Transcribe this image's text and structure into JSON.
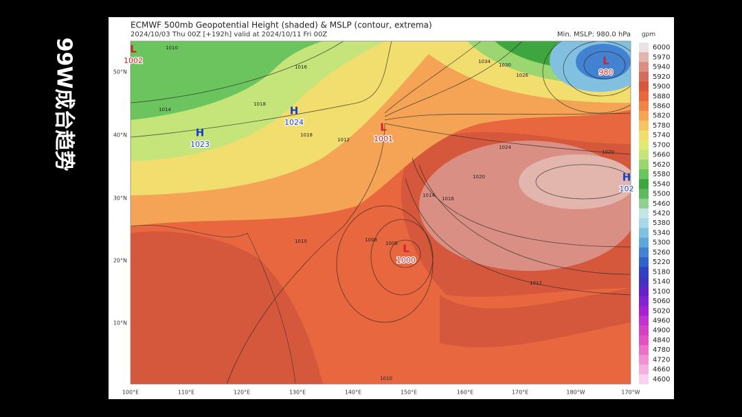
{
  "overlay_title": "99W成台趋势",
  "header": {
    "title": "ECMWF 500mb Geopotential Height (shaded) & MSLP (contour, extrema)",
    "subtitle": "2024/10/03 Thu 00Z [+192h] valid at 2024/10/11 Fri 00Z",
    "min_mslp": "Min. MSLP: 980.0 hPa"
  },
  "colorbar": {
    "unit": "gpm",
    "levels": [
      {
        "value": 6000,
        "color": "#ebe3e3"
      },
      {
        "value": 5970,
        "color": "#e2b5ad"
      },
      {
        "value": 5940,
        "color": "#d98f83"
      },
      {
        "value": 5920,
        "color": "#d46e5c"
      },
      {
        "value": 5900,
        "color": "#d5583c"
      },
      {
        "value": 5880,
        "color": "#e8673f"
      },
      {
        "value": 5860,
        "color": "#f08448"
      },
      {
        "value": 5820,
        "color": "#f5a455"
      },
      {
        "value": 5780,
        "color": "#f6c462"
      },
      {
        "value": 5740,
        "color": "#f1de6f"
      },
      {
        "value": 5700,
        "color": "#e3ea74"
      },
      {
        "value": 5660,
        "color": "#c5e47a"
      },
      {
        "value": 5620,
        "color": "#9cd670"
      },
      {
        "value": 5580,
        "color": "#6cc45e"
      },
      {
        "value": 5540,
        "color": "#3fa63f"
      },
      {
        "value": 5500,
        "color": "#5fb95f"
      },
      {
        "value": 5460,
        "color": "#92d092"
      },
      {
        "value": 5420,
        "color": "#c3e6e3"
      },
      {
        "value": 5380,
        "color": "#a9d8e8"
      },
      {
        "value": 5340,
        "color": "#82c0e0"
      },
      {
        "value": 5300,
        "color": "#5fa7d8"
      },
      {
        "value": 5260,
        "color": "#4282d0"
      },
      {
        "value": 5220,
        "color": "#3162c8"
      },
      {
        "value": 5180,
        "color": "#3142c0"
      },
      {
        "value": 5140,
        "color": "#4331c0"
      },
      {
        "value": 5100,
        "color": "#6222c8"
      },
      {
        "value": 5060,
        "color": "#8222d0"
      },
      {
        "value": 5020,
        "color": "#a322d0"
      },
      {
        "value": 4960,
        "color": "#c232d0"
      },
      {
        "value": 4900,
        "color": "#d342c2"
      },
      {
        "value": 4840,
        "color": "#e152c0"
      },
      {
        "value": 4780,
        "color": "#e972c8"
      },
      {
        "value": 4720,
        "color": "#f092d2"
      },
      {
        "value": 4660,
        "color": "#f2b2e0"
      },
      {
        "value": 4600,
        "color": "#f8d2f0"
      }
    ]
  },
  "lat_labels": [
    "50°N",
    "40°N",
    "30°N",
    "20°N",
    "10°N"
  ],
  "lon_labels": [
    "100°E",
    "110°E",
    "120°E",
    "130°E",
    "140°E",
    "150°E",
    "160°E",
    "170°E",
    "180°W",
    "170°W"
  ],
  "extrema": [
    {
      "symbol": "L",
      "value": "1002"
    },
    {
      "symbol": "H",
      "value": "1024"
    },
    {
      "symbol": "H",
      "value": "1023"
    },
    {
      "symbol": "L",
      "value": "1001"
    },
    {
      "symbol": "L",
      "value": "1000"
    },
    {
      "symbol": "L",
      "value": "980"
    },
    {
      "symbol": "H",
      "value": "102"
    }
  ],
  "contour_labels": [
    "1010",
    "1014",
    "1018",
    "1016",
    "1018",
    "1012",
    "1024",
    "1020",
    "1016",
    "1014",
    "1008",
    "1006",
    "1010",
    "1012",
    "1010",
    "1034",
    "1030",
    "1026",
    "1020"
  ]
}
